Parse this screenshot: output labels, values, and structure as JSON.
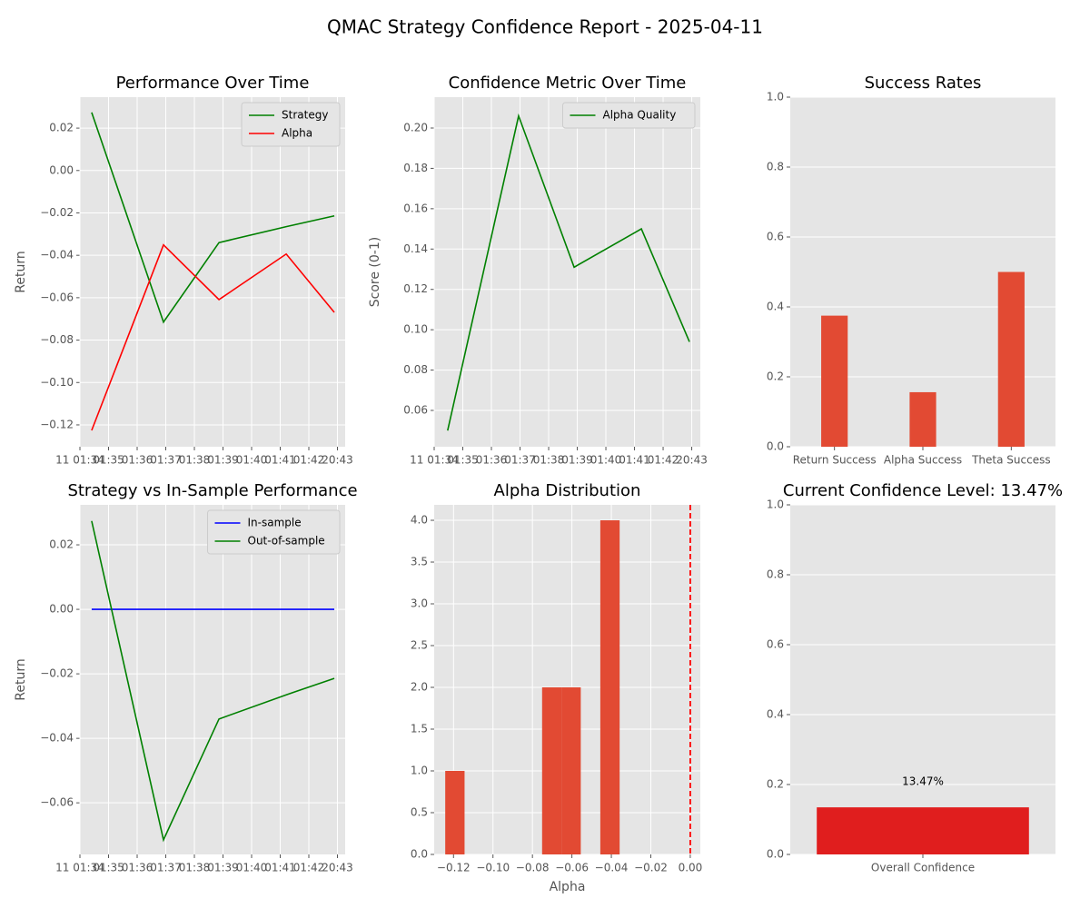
{
  "title": "QMAC Strategy Confidence Report - 2025-04-11",
  "chart_data": [
    {
      "type": "line",
      "title": "Performance Over Time",
      "y_label": "Return",
      "x": [
        0.41,
        2.92,
        4.86,
        7.21,
        8.89
      ],
      "xlim": [
        0,
        9.27
      ],
      "xticks": [
        {
          "value": 0,
          "label": "11 01:34"
        },
        {
          "value": 1,
          "label": "01:35"
        },
        {
          "value": 2,
          "label": "01:36"
        },
        {
          "value": 3,
          "label": "01:37"
        },
        {
          "value": 4,
          "label": "01:38"
        },
        {
          "value": 5,
          "label": "01:39"
        },
        {
          "value": 6,
          "label": "01:40"
        },
        {
          "value": 7,
          "label": "01:41"
        },
        {
          "value": 8,
          "label": "01:42"
        },
        {
          "value": 9,
          "label": "20:43"
        }
      ],
      "ylim": [
        -0.1303,
        0.0346
      ],
      "yticks": [
        {
          "value": 0.02,
          "label": "0.02"
        },
        {
          "value": 0,
          "label": "0.00"
        },
        {
          "value": -0.02,
          "label": "−0.02"
        },
        {
          "value": -0.04,
          "label": "−0.04"
        },
        {
          "value": -0.06,
          "label": "−0.06"
        },
        {
          "value": -0.08,
          "label": "−0.08"
        },
        {
          "value": -0.1,
          "label": "−0.10"
        },
        {
          "value": -0.12,
          "label": "−0.12"
        }
      ],
      "grid": true,
      "legend": "upper right",
      "series": [
        {
          "name": "Strategy",
          "color": "#008000",
          "values": [
            0.0274,
            -0.0715,
            -0.034,
            -0.0265,
            -0.0214
          ]
        },
        {
          "name": "Alpha",
          "color": "#ff0000",
          "values": [
            -0.1226,
            -0.0351,
            -0.0609,
            -0.0394,
            -0.0669
          ]
        }
      ]
    },
    {
      "type": "line",
      "title": "Confidence Metric Over Time",
      "y_label": "Score (0-1)",
      "x": [
        0.47,
        2.95,
        4.89,
        7.24,
        8.92
      ],
      "xlim": [
        0,
        9.3
      ],
      "xticks": [
        {
          "value": 0,
          "label": "11 01:34"
        },
        {
          "value": 1,
          "label": "01:35"
        },
        {
          "value": 2,
          "label": "01:36"
        },
        {
          "value": 3,
          "label": "01:37"
        },
        {
          "value": 4,
          "label": "01:38"
        },
        {
          "value": 5,
          "label": "01:39"
        },
        {
          "value": 6,
          "label": "01:40"
        },
        {
          "value": 7,
          "label": "01:41"
        },
        {
          "value": 8,
          "label": "01:42"
        },
        {
          "value": 9,
          "label": "20:43"
        }
      ],
      "ylim": [
        0.042,
        0.2153
      ],
      "yticks": [
        {
          "value": 0.06,
          "label": "0.06"
        },
        {
          "value": 0.08,
          "label": "0.08"
        },
        {
          "value": 0.1,
          "label": "0.10"
        },
        {
          "value": 0.12,
          "label": "0.12"
        },
        {
          "value": 0.14,
          "label": "0.14"
        },
        {
          "value": 0.16,
          "label": "0.16"
        },
        {
          "value": 0.18,
          "label": "0.18"
        },
        {
          "value": 0.2,
          "label": "0.20"
        }
      ],
      "grid": true,
      "legend": "upper right",
      "series": [
        {
          "name": "Alpha Quality",
          "color": "#008000",
          "values": [
            0.05,
            0.206,
            0.131,
            0.15,
            0.094
          ]
        }
      ]
    },
    {
      "type": "bar",
      "title": "Success Rates",
      "categories": [
        "Return Success",
        "Alpha Success",
        "Theta Success"
      ],
      "values": [
        0.375,
        0.156,
        0.5
      ],
      "color": "#e24a33",
      "ylim": [
        0,
        1
      ],
      "yticks": [
        {
          "value": 0,
          "label": "0.0"
        },
        0.2,
        0.4,
        0.6,
        0.8,
        {
          "value": 1,
          "label": "1.0"
        }
      ],
      "grid": true
    },
    {
      "type": "line",
      "title": "Strategy vs In-Sample Performance",
      "y_label": "Return",
      "x": [
        0.41,
        2.92,
        4.86,
        7.21,
        8.89
      ],
      "xlim": [
        0,
        9.27
      ],
      "xticks": [
        {
          "value": 0,
          "label": "11 01:34"
        },
        {
          "value": 1,
          "label": "01:35"
        },
        {
          "value": 2,
          "label": "01:36"
        },
        {
          "value": 3,
          "label": "01:37"
        },
        {
          "value": 4,
          "label": "01:38"
        },
        {
          "value": 5,
          "label": "01:39"
        },
        {
          "value": 6,
          "label": "01:40"
        },
        {
          "value": 7,
          "label": "01:41"
        },
        {
          "value": 8,
          "label": "01:42"
        },
        {
          "value": 9,
          "label": "20:43"
        }
      ],
      "ylim": [
        -0.076,
        0.0324
      ],
      "yticks": [
        {
          "value": 0.02,
          "label": "0.02"
        },
        {
          "value": 0,
          "label": "0.00"
        },
        {
          "value": -0.02,
          "label": "−0.02"
        },
        {
          "value": -0.04,
          "label": "−0.04"
        },
        {
          "value": -0.06,
          "label": "−0.06"
        }
      ],
      "grid": true,
      "legend": "upper right",
      "series": [
        {
          "name": "In-sample",
          "color": "#0000ff",
          "values": [
            0,
            0,
            0,
            0,
            0
          ]
        },
        {
          "name": "Out-of-sample",
          "color": "#008000",
          "values": [
            0.0274,
            -0.0715,
            -0.034,
            -0.0265,
            -0.0214
          ]
        }
      ]
    },
    {
      "type": "histogram",
      "title": "Alpha Distribution",
      "x_label": "Alpha",
      "bins": [
        -0.1242,
        -0.1144,
        -0.1046,
        -0.0948,
        -0.0849,
        -0.0751,
        -0.0653,
        -0.0555,
        -0.0456,
        -0.0358
      ],
      "values": [
        1,
        0,
        0,
        0,
        0,
        2,
        2,
        0,
        4
      ],
      "color": "#e24a33",
      "xlim": [
        -0.1298,
        0.0051
      ],
      "xticks": [
        {
          "value": -0.12,
          "label": "−0.12"
        },
        {
          "value": -0.1,
          "label": "−0.10"
        },
        {
          "value": -0.08,
          "label": "−0.08"
        },
        {
          "value": -0.06,
          "label": "−0.06"
        },
        {
          "value": -0.04,
          "label": "−0.04"
        },
        {
          "value": -0.02,
          "label": "−0.02"
        },
        {
          "value": 0,
          "label": "0.00"
        }
      ],
      "ylim": [
        0,
        4.185
      ],
      "yticks": [
        {
          "value": 0,
          "label": "0.0"
        },
        0.5,
        {
          "value": 1,
          "label": "1.0"
        },
        1.5,
        {
          "value": 2,
          "label": "2.0"
        },
        2.5,
        {
          "value": 3,
          "label": "3.0"
        },
        3.5,
        {
          "value": 4,
          "label": "4.0"
        }
      ],
      "grid": true,
      "vline": 0,
      "vline_color": "#ff0000"
    },
    {
      "type": "bar",
      "title": "Current Confidence Level: 13.47%",
      "categories": [
        "Overall Confidence"
      ],
      "values": [
        0.1347
      ],
      "value_labels": [
        "13.47%"
      ],
      "color": "#e01e1e",
      "ylim": [
        0,
        1
      ],
      "yticks": [
        {
          "value": 0,
          "label": "0.0"
        },
        0.2,
        0.4,
        0.6,
        0.8,
        {
          "value": 1,
          "label": "1.0"
        }
      ],
      "grid": true
    }
  ]
}
